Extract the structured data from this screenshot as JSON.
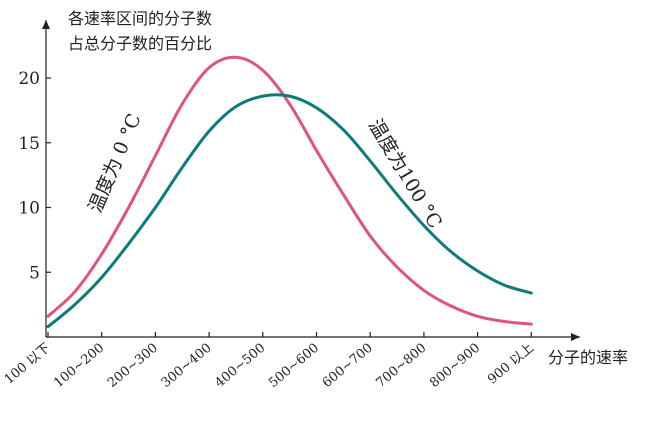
{
  "chart_data": {
    "type": "line",
    "ylabel_line1": "各速率区间的分子数",
    "ylabel_line2": "占总分子数的百分比",
    "xlabel": "分子的速率",
    "categories": [
      "100 以下",
      "100~200",
      "200~300",
      "300~400",
      "400~500",
      "500~600",
      "600~700",
      "700~800",
      "800~900",
      "900 以上"
    ],
    "y_ticks": [
      5,
      10,
      15,
      20
    ],
    "ylim": [
      0,
      23.5
    ],
    "grid": false,
    "series": [
      {
        "name": "温度为 0 °C",
        "color": "#e0527f",
        "points": [
          [
            0,
            1.6
          ],
          [
            0.5,
            3.5
          ],
          [
            1,
            6.4
          ],
          [
            1.5,
            10.0
          ],
          [
            2,
            14.0
          ],
          [
            2.5,
            18.0
          ],
          [
            3,
            20.8
          ],
          [
            3.5,
            21.6
          ],
          [
            4,
            20.6
          ],
          [
            4.5,
            18.0
          ],
          [
            5,
            14.4
          ],
          [
            5.5,
            11.0
          ],
          [
            6,
            7.8
          ],
          [
            6.5,
            5.4
          ],
          [
            7,
            3.6
          ],
          [
            7.5,
            2.4
          ],
          [
            8,
            1.6
          ],
          [
            8.5,
            1.2
          ],
          [
            9,
            1.0
          ]
        ]
      },
      {
        "name": "温度为100 °C",
        "color": "#0e7b7b",
        "points": [
          [
            0,
            0.8
          ],
          [
            0.5,
            2.5
          ],
          [
            1,
            4.6
          ],
          [
            1.5,
            7.2
          ],
          [
            2,
            10.0
          ],
          [
            2.5,
            13.1
          ],
          [
            3,
            15.9
          ],
          [
            3.5,
            17.8
          ],
          [
            4,
            18.6
          ],
          [
            4.5,
            18.6
          ],
          [
            5,
            17.7
          ],
          [
            5.5,
            16.0
          ],
          [
            6,
            13.6
          ],
          [
            6.5,
            11.0
          ],
          [
            7,
            8.6
          ],
          [
            7.5,
            6.6
          ],
          [
            8,
            5.1
          ],
          [
            8.5,
            4.0
          ],
          [
            9,
            3.4
          ]
        ]
      }
    ],
    "annotations": [
      {
        "series": 0,
        "text": "温度为 0 °C"
      },
      {
        "series": 1,
        "text": "温度为100 °C"
      }
    ]
  }
}
